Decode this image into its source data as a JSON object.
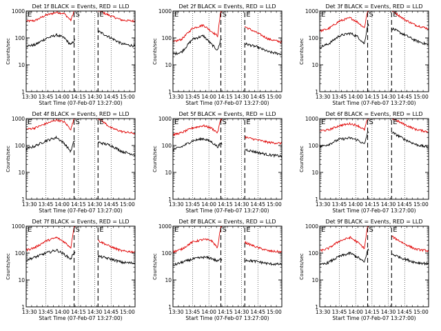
{
  "ylabel": "Counts/sec",
  "xlabel": "Start Time (07-Feb-07 13:27:00)",
  "y_ticks": [
    "1",
    "10",
    "100",
    "1000"
  ],
  "x_ticks": [
    "13:30",
    "13:45",
    "14:00",
    "14:15",
    "14:30",
    "14:45",
    "15:00"
  ],
  "markers": {
    "start": "S",
    "end": "E"
  },
  "colors": {
    "events": "#000000",
    "lld": "#e00000"
  },
  "chart_data": [
    {
      "type": "line",
      "title": "Det 1f BLACK = Events, RED = LLD",
      "xlim": [
        "13:27",
        "15:07"
      ],
      "ylim": [
        1,
        1000
      ],
      "yscale": "log",
      "events_scale": 1.0,
      "lld_scale": 8.0,
      "gap_start": "14:12",
      "gap_end": "14:33",
      "series": [
        {
          "name": "BLACK = Events",
          "x": [
            "13:27",
            "13:35",
            "13:45",
            "13:55",
            "14:02",
            "14:08",
            "14:11",
            "14:34",
            "14:45",
            "14:55",
            "15:07"
          ],
          "y": [
            50,
            55,
            95,
            130,
            100,
            55,
            80,
            170,
            100,
            60,
            50
          ]
        },
        {
          "name": "RED = LLD",
          "x": [
            "13:27",
            "13:35",
            "13:45",
            "13:55",
            "14:02",
            "14:08",
            "14:11",
            "14:34",
            "14:45",
            "14:55",
            "15:07"
          ],
          "y": [
            420,
            440,
            700,
            900,
            800,
            450,
            1000,
            1000,
            650,
            460,
            420
          ]
        }
      ]
    },
    {
      "type": "line",
      "title": "Det 2f BLACK = Events, RED = LLD",
      "xlim": [
        "13:27",
        "15:07"
      ],
      "ylim": [
        1,
        1000
      ],
      "yscale": "log",
      "events_scale": 1.0,
      "lld_scale": 4.0,
      "gap_start": "14:12",
      "gap_end": "14:33",
      "series": [
        {
          "name": "BLACK = Events",
          "x": [
            "13:27",
            "13:35",
            "13:45",
            "13:55",
            "14:02",
            "14:08",
            "14:11",
            "14:34",
            "14:45",
            "14:55",
            "15:07"
          ],
          "y": [
            25,
            30,
            90,
            120,
            60,
            35,
            90,
            60,
            45,
            30,
            25
          ]
        },
        {
          "name": "RED = LLD",
          "x": [
            "13:27",
            "13:35",
            "13:45",
            "13:55",
            "14:02",
            "14:08",
            "14:11",
            "14:34",
            "14:45",
            "14:55",
            "15:07"
          ],
          "y": [
            70,
            90,
            230,
            300,
            180,
            120,
            1000,
            250,
            150,
            90,
            70
          ]
        }
      ]
    },
    {
      "type": "line",
      "title": "Det 3f BLACK = Events, RED = LLD",
      "xlim": [
        "13:27",
        "15:07"
      ],
      "ylim": [
        1,
        1000
      ],
      "yscale": "log",
      "events_scale": 1.0,
      "lld_scale": 4.0,
      "gap_start": "14:12",
      "gap_end": "14:33",
      "series": [
        {
          "name": "BLACK = Events",
          "x": [
            "13:27",
            "13:35",
            "13:45",
            "13:55",
            "14:02",
            "14:08",
            "14:11",
            "14:34",
            "14:45",
            "14:55",
            "15:07"
          ],
          "y": [
            45,
            60,
            120,
            150,
            110,
            60,
            300,
            220,
            130,
            80,
            55
          ]
        },
        {
          "name": "RED = LLD",
          "x": [
            "13:27",
            "13:35",
            "13:45",
            "13:55",
            "14:02",
            "14:08",
            "14:11",
            "14:34",
            "14:45",
            "14:55",
            "15:07"
          ],
          "y": [
            180,
            220,
            420,
            560,
            380,
            240,
            1000,
            1000,
            480,
            300,
            220
          ]
        }
      ]
    },
    {
      "type": "line",
      "title": "Det 4f BLACK = Events, RED = LLD",
      "xlim": [
        "13:27",
        "15:07"
      ],
      "ylim": [
        1,
        1000
      ],
      "yscale": "log",
      "events_scale": 1.0,
      "lld_scale": 6.0,
      "gap_start": "14:12",
      "gap_end": "14:33",
      "series": [
        {
          "name": "BLACK = Events",
          "x": [
            "13:27",
            "13:35",
            "13:45",
            "13:55",
            "14:02",
            "14:08",
            "14:11",
            "14:34",
            "14:45",
            "14:55",
            "15:07"
          ],
          "y": [
            75,
            95,
            150,
            200,
            120,
            60,
            150,
            130,
            100,
            60,
            45
          ]
        },
        {
          "name": "RED = LLD",
          "x": [
            "13:27",
            "13:35",
            "13:45",
            "13:55",
            "14:02",
            "14:08",
            "14:11",
            "14:34",
            "14:45",
            "14:55",
            "15:07"
          ],
          "y": [
            400,
            450,
            650,
            900,
            750,
            400,
            1000,
            1000,
            450,
            330,
            280
          ]
        }
      ]
    },
    {
      "type": "line",
      "title": "Det 5f BLACK = Events, RED = LLD",
      "xlim": [
        "13:27",
        "15:07"
      ],
      "ylim": [
        1,
        1000
      ],
      "yscale": "log",
      "events_scale": 1.0,
      "lld_scale": 3.0,
      "gap_start": "14:12",
      "gap_end": "14:33",
      "series": [
        {
          "name": "BLACK = Events",
          "x": [
            "13:27",
            "13:35",
            "13:45",
            "13:55",
            "14:02",
            "14:08",
            "14:11",
            "14:34",
            "14:45",
            "14:55",
            "15:07"
          ],
          "y": [
            70,
            90,
            150,
            180,
            140,
            90,
            120,
            70,
            55,
            45,
            40
          ]
        },
        {
          "name": "RED = LLD",
          "x": [
            "13:27",
            "13:35",
            "13:45",
            "13:55",
            "14:02",
            "14:08",
            "14:11",
            "14:34",
            "14:45",
            "14:55",
            "15:07"
          ],
          "y": [
            250,
            300,
            450,
            550,
            450,
            300,
            1000,
            200,
            160,
            130,
            120
          ]
        }
      ]
    },
    {
      "type": "line",
      "title": "Det 6f BLACK = Events, RED = LLD",
      "xlim": [
        "13:27",
        "15:07"
      ],
      "ylim": [
        1,
        1000
      ],
      "yscale": "log",
      "events_scale": 1.0,
      "lld_scale": 4.0,
      "gap_start": "14:12",
      "gap_end": "14:33",
      "series": [
        {
          "name": "BLACK = Events",
          "x": [
            "13:27",
            "13:35",
            "13:45",
            "13:55",
            "14:02",
            "14:08",
            "14:11",
            "14:34",
            "14:45",
            "14:55",
            "15:07"
          ],
          "y": [
            90,
            110,
            170,
            190,
            160,
            110,
            300,
            300,
            170,
            110,
            85
          ]
        },
        {
          "name": "RED = LLD",
          "x": [
            "13:27",
            "13:35",
            "13:45",
            "13:55",
            "14:02",
            "14:08",
            "14:11",
            "14:34",
            "14:45",
            "14:55",
            "15:07"
          ],
          "y": [
            350,
            380,
            550,
            650,
            550,
            380,
            1000,
            1000,
            600,
            400,
            320
          ]
        }
      ]
    },
    {
      "type": "line",
      "title": "Det 7f BLACK = Events, RED = LLD",
      "xlim": [
        "13:27",
        "15:07"
      ],
      "ylim": [
        1,
        1000
      ],
      "yscale": "log",
      "events_scale": 1.0,
      "lld_scale": 3.0,
      "gap_start": "14:12",
      "gap_end": "14:33",
      "series": [
        {
          "name": "BLACK = Events",
          "x": [
            "13:27",
            "13:35",
            "13:45",
            "13:55",
            "14:02",
            "14:08",
            "14:11",
            "14:34",
            "14:45",
            "14:55",
            "15:07"
          ],
          "y": [
            55,
            70,
            100,
            130,
            90,
            60,
            110,
            75,
            60,
            45,
            42
          ]
        },
        {
          "name": "RED = LLD",
          "x": [
            "13:27",
            "13:35",
            "13:45",
            "13:55",
            "14:02",
            "14:08",
            "14:11",
            "14:34",
            "14:45",
            "14:55",
            "15:07"
          ],
          "y": [
            130,
            160,
            280,
            380,
            260,
            160,
            1000,
            280,
            170,
            120,
            110
          ]
        }
      ]
    },
    {
      "type": "line",
      "title": "Det 8f BLACK = Events, RED = LLD",
      "xlim": [
        "13:27",
        "15:07"
      ],
      "ylim": [
        1,
        1000
      ],
      "yscale": "log",
      "events_scale": 1.0,
      "lld_scale": 2.5,
      "gap_start": "14:12",
      "gap_end": "14:33",
      "series": [
        {
          "name": "BLACK = Events",
          "x": [
            "13:27",
            "13:35",
            "13:45",
            "13:55",
            "14:02",
            "14:08",
            "14:11",
            "14:34",
            "14:45",
            "14:55",
            "15:07"
          ],
          "y": [
            35,
            45,
            60,
            70,
            65,
            50,
            60,
            55,
            48,
            40,
            38
          ]
        },
        {
          "name": "RED = LLD",
          "x": [
            "13:27",
            "13:35",
            "13:45",
            "13:55",
            "14:02",
            "14:08",
            "14:11",
            "14:34",
            "14:45",
            "14:55",
            "15:07"
          ],
          "y": [
            110,
            140,
            260,
            320,
            300,
            160,
            1000,
            240,
            160,
            120,
            110
          ]
        }
      ]
    },
    {
      "type": "line",
      "title": "Det 9f BLACK = Events, RED = LLD",
      "xlim": [
        "13:27",
        "15:07"
      ],
      "ylim": [
        1,
        1000
      ],
      "yscale": "log",
      "events_scale": 1.0,
      "lld_scale": 4.0,
      "gap_start": "14:12",
      "gap_end": "14:33",
      "series": [
        {
          "name": "BLACK = Events",
          "x": [
            "13:27",
            "13:35",
            "13:45",
            "13:55",
            "14:02",
            "14:08",
            "14:11",
            "14:34",
            "14:45",
            "14:55",
            "15:07"
          ],
          "y": [
            35,
            45,
            75,
            100,
            70,
            45,
            130,
            90,
            60,
            45,
            40
          ]
        },
        {
          "name": "RED = LLD",
          "x": [
            "13:27",
            "13:35",
            "13:45",
            "13:55",
            "14:02",
            "14:08",
            "14:11",
            "14:34",
            "14:45",
            "14:55",
            "15:07"
          ],
          "y": [
            120,
            150,
            280,
            380,
            250,
            150,
            1000,
            400,
            220,
            140,
            120
          ]
        }
      ]
    }
  ]
}
